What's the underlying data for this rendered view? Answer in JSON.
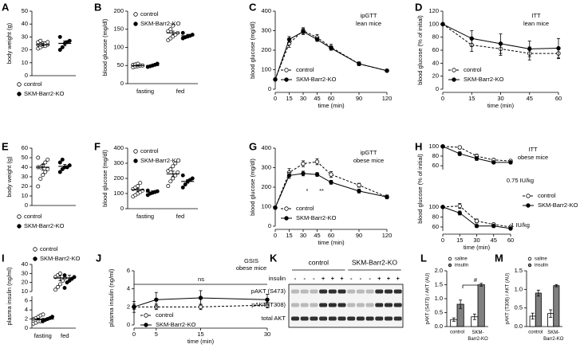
{
  "chart_data": [
    {
      "panel": "A",
      "type": "dot",
      "ylabel": "body weight (g)",
      "ylim": [
        0,
        50
      ],
      "yticks": [
        0,
        10,
        20,
        30,
        40,
        50
      ],
      "series": [
        {
          "name": "control",
          "color": "#ffffff",
          "values": [
            [
              21,
              22,
              23,
              23,
              24,
              24,
              24,
              25,
              25,
              26,
              26,
              27
            ]
          ],
          "means": [
            24
          ],
          "errors": [
            1
          ]
        },
        {
          "name": "SKM-Barr2-KO",
          "color": "#000000",
          "values": [
            [
              20,
              22,
              25,
              26,
              27,
              30
            ]
          ],
          "means": [
            25
          ],
          "errors": [
            2
          ]
        }
      ]
    },
    {
      "panel": "B",
      "type": "dot",
      "ylabel": "blood glucose (mg/dl)",
      "ylim": [
        0,
        200
      ],
      "yticks": [
        0,
        50,
        100,
        150,
        200
      ],
      "categories": [
        "fasting",
        "fed"
      ],
      "series": [
        {
          "name": "control",
          "color": "#ffffff",
          "values": [
            [
              45,
              47,
              48,
              50,
              50,
              52,
              53,
              55
            ],
            [
              120,
              125,
              130,
              135,
              140,
              145,
              150,
              160
            ]
          ],
          "means": [
            50,
            140
          ],
          "errors": [
            2,
            5
          ]
        },
        {
          "name": "SKM-Barr2-KO",
          "color": "#000000",
          "values": [
            [
              46,
              48,
              50,
              52,
              55
            ],
            [
              125,
              128,
              130,
              132,
              135,
              140
            ]
          ],
          "means": [
            50,
            132
          ],
          "errors": [
            2,
            4
          ]
        }
      ]
    },
    {
      "panel": "C",
      "type": "line",
      "ylabel": "blood glucose (mg/dl)",
      "xlabel": "time (min)",
      "annotations": [
        "ipGTT",
        "lean mice"
      ],
      "x": [
        0,
        15,
        30,
        45,
        60,
        90,
        120
      ],
      "xlim": [
        0,
        120
      ],
      "xticks": [
        0,
        15,
        30,
        45,
        60,
        90,
        120
      ],
      "ylim": [
        0,
        400
      ],
      "yticks": [
        0,
        100,
        200,
        300,
        400
      ],
      "series": [
        {
          "name": "control",
          "color": "#ffffff",
          "dashed": true,
          "values": [
            50,
            235,
            300,
            265,
            215,
            130,
            95
          ],
          "errors": [
            5,
            20,
            15,
            15,
            15,
            10,
            5
          ]
        },
        {
          "name": "SKM-Barr2-KO",
          "color": "#000000",
          "dashed": false,
          "values": [
            50,
            255,
            295,
            255,
            210,
            130,
            95
          ],
          "errors": [
            5,
            15,
            15,
            10,
            10,
            10,
            5
          ]
        }
      ]
    },
    {
      "panel": "D",
      "type": "line",
      "ylabel": "blood glucose (% of initial)",
      "xlabel": "time (min)",
      "annotations": [
        "ITT",
        "lean mice"
      ],
      "x": [
        0,
        15,
        30,
        45,
        60
      ],
      "xlim": [
        0,
        60
      ],
      "xticks": [
        0,
        15,
        30,
        45,
        60
      ],
      "ylim": [
        0,
        120
      ],
      "yticks": [
        0,
        20,
        40,
        60,
        80,
        100,
        120
      ],
      "series": [
        {
          "name": "control",
          "color": "#ffffff",
          "dashed": true,
          "values": [
            100,
            68,
            62,
            55,
            55
          ],
          "errors": [
            0,
            10,
            10,
            10,
            8
          ]
        },
        {
          "name": "SKM-Barr2-KO",
          "color": "#000000",
          "dashed": false,
          "values": [
            100,
            78,
            70,
            62,
            63
          ],
          "errors": [
            0,
            12,
            15,
            12,
            15
          ]
        }
      ]
    },
    {
      "panel": "E",
      "type": "dot",
      "ylabel": "body weight (g)",
      "ylim": [
        0,
        60
      ],
      "yticks": [
        0,
        10,
        20,
        30,
        40,
        50,
        60
      ],
      "series": [
        {
          "name": "control",
          "color": "#ffffff",
          "values": [
            [
              20,
              28,
              32,
              35,
              38,
              40,
              40,
              42,
              45,
              48,
              50
            ]
          ],
          "means": [
            40
          ],
          "errors": [
            3
          ]
        },
        {
          "name": "SKM-Barr2-KO",
          "color": "#000000",
          "values": [
            [
              35,
              38,
              40,
              40,
              42,
              45,
              48
            ]
          ],
          "means": [
            41
          ],
          "errors": [
            2
          ]
        }
      ]
    },
    {
      "panel": "F",
      "type": "dot",
      "ylabel": "blood glucose (mg/dl)",
      "ylim": [
        0,
        400
      ],
      "yticks": [
        0,
        100,
        200,
        300,
        400
      ],
      "categories": [
        "fasting",
        "fed"
      ],
      "series": [
        {
          "name": "control",
          "color": "#ffffff",
          "values": [
            [
              80,
              90,
              100,
              110,
              120,
              130,
              140,
              150,
              170
            ],
            [
              150,
              180,
              200,
              220,
              240,
              250,
              260,
              280,
              300
            ]
          ],
          "means": [
            125,
            230
          ],
          "errors": [
            10,
            18
          ]
        },
        {
          "name": "SKM-Barr2-KO",
          "color": "#000000",
          "values": [
            [
              90,
              100,
              105,
              110,
              115,
              120
            ],
            [
              140,
              160,
              180,
              190,
              200,
              220
            ]
          ],
          "means": [
            110,
            180
          ],
          "errors": [
            8,
            12
          ]
        }
      ]
    },
    {
      "panel": "G",
      "type": "line",
      "ylabel": "blood glucose (mg/dl)",
      "xlabel": "time (min)",
      "annotations": [
        "ipGTT",
        "obese mice",
        "*",
        "**"
      ],
      "x": [
        0,
        15,
        30,
        45,
        60,
        90,
        120
      ],
      "xlim": [
        0,
        120
      ],
      "xticks": [
        0,
        15,
        30,
        45,
        60,
        90,
        120
      ],
      "ylim": [
        0,
        400
      ],
      "yticks": [
        0,
        100,
        200,
        300,
        400
      ],
      "series": [
        {
          "name": "control",
          "color": "#ffffff",
          "dashed": true,
          "values": [
            95,
            275,
            320,
            330,
            265,
            210,
            150
          ],
          "errors": [
            5,
            20,
            15,
            15,
            15,
            10,
            10
          ]
        },
        {
          "name": "SKM-Barr2-KO",
          "color": "#000000",
          "dashed": false,
          "values": [
            95,
            260,
            270,
            265,
            225,
            180,
            150
          ],
          "errors": [
            5,
            15,
            12,
            10,
            10,
            10,
            8
          ]
        }
      ]
    },
    {
      "panel": "H",
      "type": "line",
      "ylabel": "blood glucose (% of initial)",
      "annotations": [
        "ITT",
        "obese mice",
        "0.75 IU/kg"
      ],
      "x": [
        0,
        15,
        30,
        45,
        60
      ],
      "ylim": [
        52,
        103
      ],
      "yticks": [
        60,
        80,
        100
      ],
      "xlim": [
        0,
        60
      ],
      "series": [
        {
          "name": "control",
          "color": "#ffffff",
          "dashed": true,
          "values": [
            100,
            98,
            80,
            72,
            70
          ],
          "errors": [
            0,
            3,
            4,
            3,
            3
          ]
        },
        {
          "name": "SKM-Barr2-KO",
          "color": "#000000",
          "dashed": false,
          "values": [
            100,
            85,
            75,
            67,
            67
          ],
          "errors": [
            0,
            4,
            4,
            3,
            3
          ]
        }
      ]
    },
    {
      "type": "line",
      "xlabel": "time (min)",
      "annotations": [
        "1 IU/kg"
      ],
      "x": [
        0,
        15,
        30,
        45,
        60
      ],
      "xlim": [
        0,
        60
      ],
      "xticks": [
        0,
        15,
        30,
        45,
        60
      ],
      "ylim": [
        52,
        103
      ],
      "yticks": [
        60,
        80,
        100
      ],
      "series": [
        {
          "color": "#ffffff",
          "dashed": true,
          "values": [
            100,
            102,
            72,
            65,
            60
          ],
          "errors": [
            0,
            5,
            4,
            3,
            3
          ]
        },
        {
          "color": "#000000",
          "dashed": false,
          "values": [
            100,
            88,
            62,
            62,
            57
          ],
          "errors": [
            0,
            4,
            3,
            3,
            3
          ]
        }
      ]
    },
    {
      "panel": "I",
      "type": "dot",
      "ylabel": "plasma insulin (ng/ml)",
      "ylim_segments": [
        [
          0,
          7
        ],
        [
          10,
          40
        ]
      ],
      "yticks": [
        0,
        2,
        4,
        6,
        10,
        20,
        30,
        40
      ],
      "categories": [
        "fasting",
        "fed"
      ],
      "series": [
        {
          "name": "control",
          "color": "#ffffff",
          "values": [
            [
              1,
              1.2,
              1.5,
              1.5,
              1.8,
              2,
              2.2,
              2.5,
              2.8,
              3
            ],
            [
              12,
              15,
              18,
              22,
              25,
              26,
              28,
              30
            ]
          ],
          "means": [
            2,
            25
          ],
          "errors": [
            0.2,
            3
          ]
        },
        {
          "name": "SKM-Barr2-KO",
          "color": "#000000",
          "values": [
            [
              1.5,
              1.8,
              2,
              2.2,
              2.5
            ],
            [
              14,
              20,
              22,
              24,
              26,
              28
            ]
          ],
          "means": [
            2,
            25
          ],
          "errors": [
            0.2,
            3
          ]
        }
      ]
    },
    {
      "panel": "J",
      "type": "line",
      "ylabel": "plasma insulin (ng/ml)",
      "xlabel": "time (min)",
      "annotations": [
        "GSIS",
        "obese mice",
        "ns"
      ],
      "x": [
        0,
        5,
        15,
        30
      ],
      "xlim": [
        0,
        30
      ],
      "xticks": [
        0,
        5,
        15,
        30
      ],
      "ylim": [
        0,
        6
      ],
      "yticks": [
        0,
        2,
        4,
        6
      ],
      "series": [
        {
          "name": "control",
          "color": "#ffffff",
          "dashed": true,
          "values": [
            2,
            2,
            2,
            2.2
          ],
          "errors": [
            0.3,
            0.3,
            0.3,
            0.3
          ]
        },
        {
          "name": "SKM-Barr2-KO",
          "color": "#000000",
          "dashed": false,
          "values": [
            2,
            2.8,
            3,
            2.8
          ],
          "errors": [
            0.6,
            0.8,
            0.8,
            0.6
          ]
        }
      ]
    },
    {
      "panel": "L",
      "type": "bar",
      "ylabel": "pAKT (S473) / AKT (AU)",
      "annotations": [
        "#"
      ],
      "categories": [
        "control",
        "SKM-Barr2-KO"
      ],
      "ylim": [
        0,
        2
      ],
      "yticks": [
        {
          "value": 0,
          "label": "0.0"
        },
        0.5,
        {
          "value": 1,
          "label": "1.0"
        },
        1.5,
        {
          "value": 2,
          "label": "2.0"
        }
      ],
      "series": [
        {
          "name": "saline",
          "color": "#ffffff",
          "values": [
            0.25,
            0.35
          ],
          "errors": [
            0.06,
            0.1
          ]
        },
        {
          "name": "insulin",
          "color": "#808080",
          "values": [
            0.8,
            1.5
          ],
          "errors": [
            0.15,
            0.05
          ]
        }
      ]
    },
    {
      "panel": "M",
      "type": "bar",
      "ylabel": "pAKT (T308) / AKT (AU)",
      "categories": [
        "control",
        "SKM-Barr2-KO"
      ],
      "ylim": [
        0,
        1.5
      ],
      "yticks": [
        {
          "value": 0,
          "label": "0.0"
        },
        0.5,
        {
          "value": 1,
          "label": "1.0"
        },
        1.5
      ],
      "series": [
        {
          "name": "saline",
          "color": "#ffffff",
          "values": [
            0.28,
            0.35
          ],
          "errors": [
            0.08,
            0.1
          ]
        },
        {
          "name": "insulin",
          "color": "#808080",
          "values": [
            0.9,
            1.1
          ],
          "errors": [
            0.08,
            0.03
          ]
        }
      ]
    }
  ],
  "blot": {
    "panel": "K",
    "groups": [
      "control",
      "SKM-Barr2-KO"
    ],
    "treatment_label": "insulin",
    "treatments": [
      "-",
      "-",
      "-",
      "+",
      "+",
      "+",
      "-",
      "-",
      "-",
      "+",
      "+",
      "+"
    ],
    "bands": [
      "pAKT (S473)",
      "pAKT (T308)",
      "total AKT"
    ]
  }
}
